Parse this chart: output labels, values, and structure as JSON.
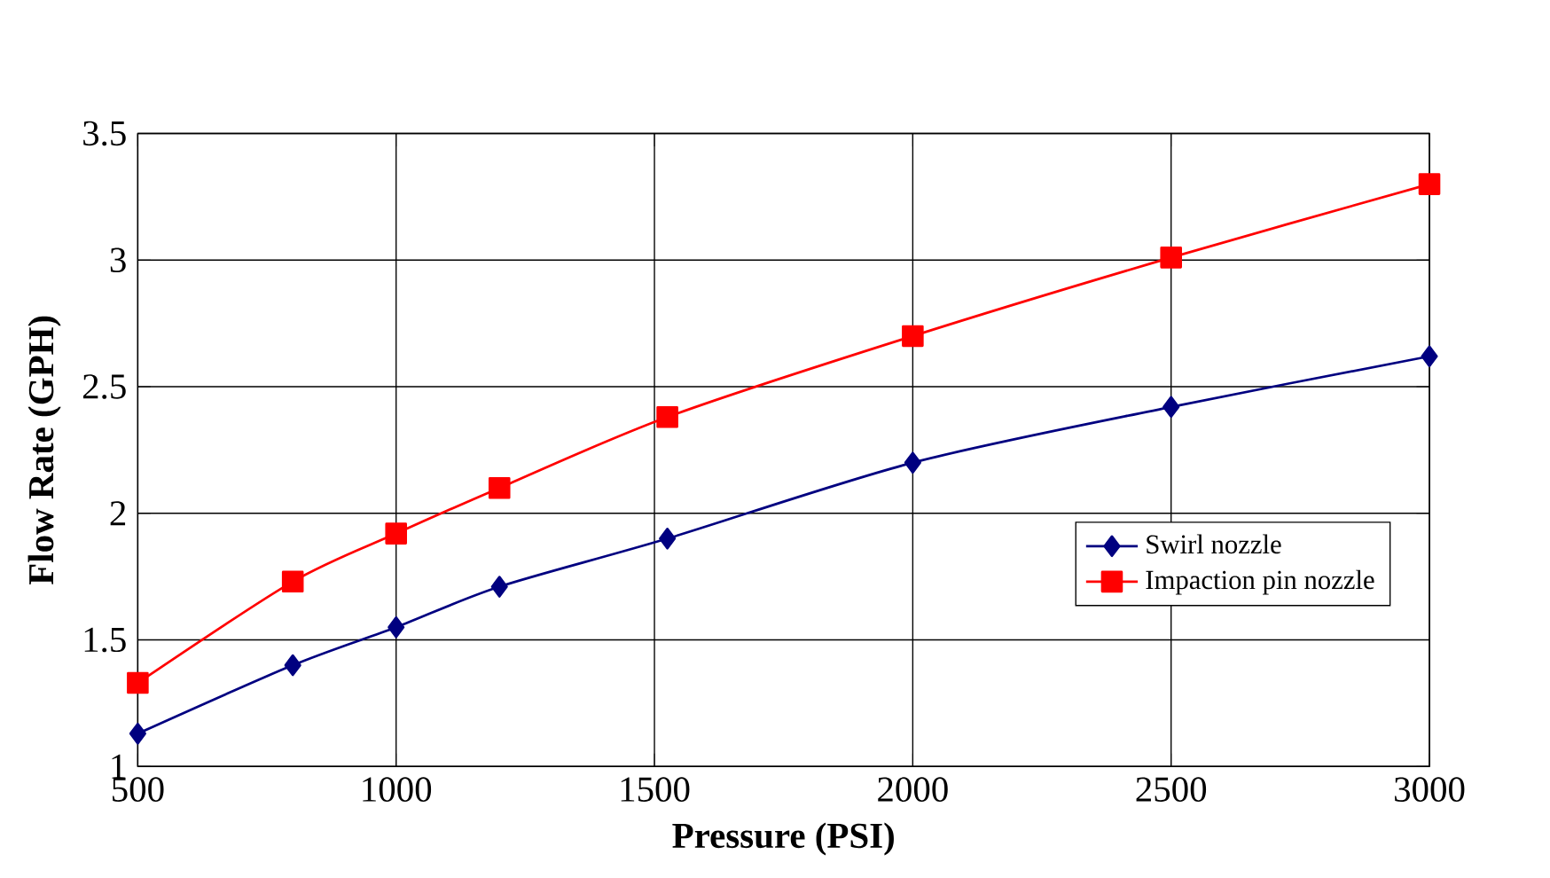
{
  "chart_data": {
    "type": "line",
    "xlabel": "Pressure (PSI)",
    "ylabel": "Flow Rate (GPH)",
    "xlim": [
      500,
      3000
    ],
    "ylim": [
      1,
      3.5
    ],
    "xticks": [
      500,
      1000,
      1500,
      2000,
      2500,
      3000
    ],
    "yticks": [
      1,
      1.5,
      2,
      2.5,
      3,
      3.5
    ],
    "grid": true,
    "legend": "right",
    "line_style": "solid",
    "series": [
      {
        "name": "Swirl nozzle",
        "color": "#000080",
        "marker": "diamond",
        "x": [
          500,
          800,
          1000,
          1200,
          1525,
          2000,
          2500,
          3000
        ],
        "values": [
          1.13,
          1.4,
          1.55,
          1.71,
          1.9,
          2.2,
          2.42,
          2.62
        ]
      },
      {
        "name": "Impaction pin nozzle",
        "color": "#ff0000",
        "marker": "square",
        "x": [
          500,
          800,
          1000,
          1200,
          1525,
          2000,
          2500,
          3000
        ],
        "values": [
          1.33,
          1.73,
          1.92,
          2.1,
          2.38,
          2.7,
          3.01,
          3.3
        ]
      }
    ]
  }
}
